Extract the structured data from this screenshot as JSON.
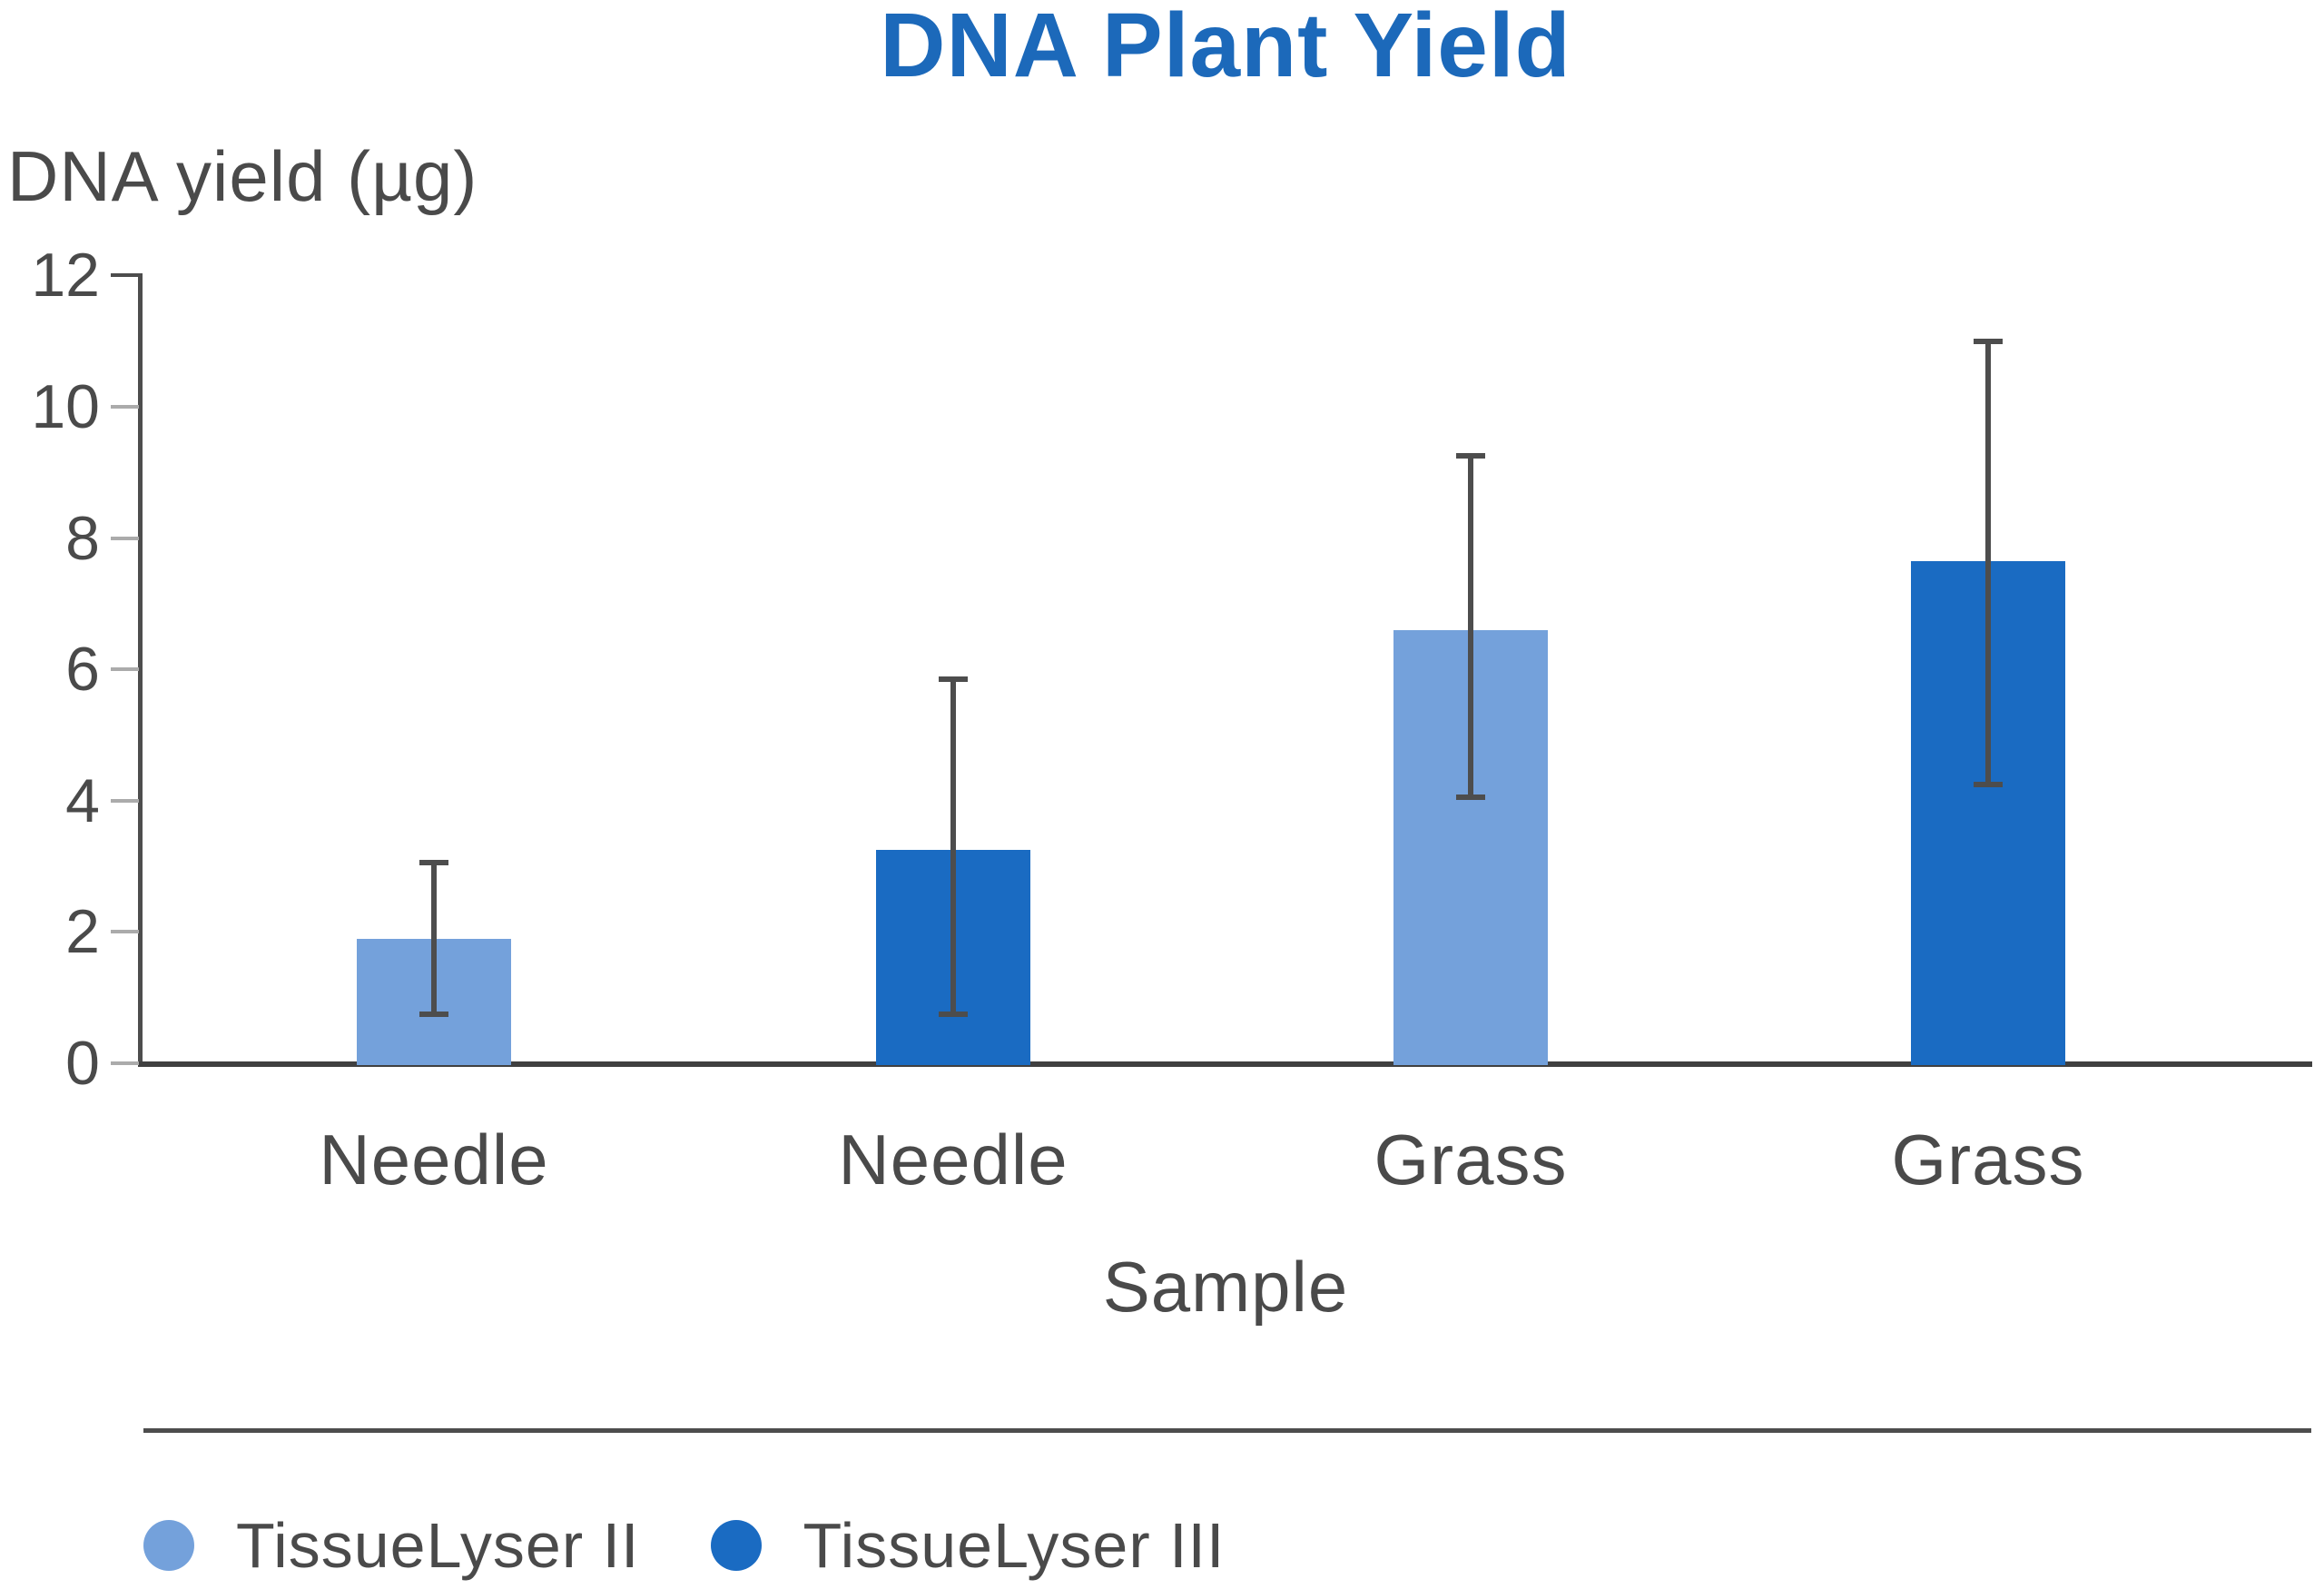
{
  "chart_data": {
    "type": "bar",
    "title": "DNA Plant Yield",
    "xlabel": "Sample",
    "ylabel": "DNA yield (µg)",
    "ylim": [
      0,
      12
    ],
    "yticks": [
      0,
      2,
      4,
      6,
      8,
      10,
      12
    ],
    "grid": false,
    "legend_position": "bottom",
    "categories": [
      "Needle",
      "Needle",
      "Grass",
      "Grass"
    ],
    "series_names": [
      "TissueLyser II",
      "TissueLyser III"
    ],
    "bars": [
      {
        "category": "Needle",
        "series": "TissueLyser II",
        "value": 1.9,
        "error_low": 0.75,
        "error_high": 3.05
      },
      {
        "category": "Needle",
        "series": "TissueLyser III",
        "value": 3.25,
        "error_low": 0.75,
        "error_high": 5.85
      },
      {
        "category": "Grass",
        "series": "TissueLyser II",
        "value": 6.6,
        "error_low": 4.05,
        "error_high": 9.25
      },
      {
        "category": "Grass",
        "series": "TissueLyser III",
        "value": 7.65,
        "error_low": 4.25,
        "error_high": 11.0
      }
    ],
    "legend": [
      {
        "label": "TissueLyser II",
        "color": "#74A1DB"
      },
      {
        "label": "TissueLyser III",
        "color": "#1A6BC2"
      }
    ]
  },
  "colors": {
    "title": "#1C69BA",
    "text": "#4A4A4A",
    "axis": "#454545",
    "tick": "#ABABAB",
    "error_bar": "#4D4D4D",
    "series_light": "#74A1DB",
    "series_dark": "#1A6BC2"
  }
}
